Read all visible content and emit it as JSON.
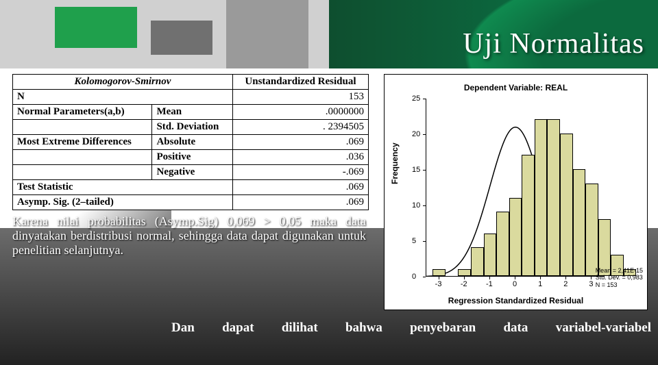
{
  "title": "Uji Normalitas",
  "table": {
    "header_left": "Kolomogorov-Smirnov",
    "header_right": "Unstandardized Residual",
    "rows": [
      {
        "a": "N",
        "b": "",
        "c": "153"
      },
      {
        "a": "Normal Parameters(a,b)",
        "b": "Mean",
        "c": ".0000000"
      },
      {
        "a": "",
        "b": "Std. Deviation",
        "c": ". 2394505"
      },
      {
        "a": "Most Extreme Differences",
        "b": "Absolute",
        "c": ".069"
      },
      {
        "a": "",
        "b": "Positive",
        "c": ".036"
      },
      {
        "a": "",
        "b": "Negative",
        "c": "-.069"
      },
      {
        "a": "Test Statistic",
        "b": "",
        "c": ".069"
      },
      {
        "a": "Asymp. Sig. (2–tailed)",
        "b": "",
        "c": ".069"
      }
    ]
  },
  "note": "Karena nilai probabilitas (Asymp.Sig) 0,069 > 0,05 maka data dinyatakan berdistribusi normal, sehingga data dapat digunakan untuk penelitian selanjutnya.",
  "footer": "Dan   dapat   dilihat   bahwa   penyebaran   data   variabel-variabel",
  "chart": {
    "type": "histogram",
    "title": "Dependent Variable: REAL",
    "xlabel": "Regression Standardized Residual",
    "ylabel": "Frequency",
    "xlim": [
      -3.5,
      3.5
    ],
    "ylim": [
      0,
      25
    ],
    "ytick_step": 5,
    "xticks": [
      -3,
      -2,
      -1,
      0,
      1,
      2,
      3
    ],
    "bin_edges_start": -3.25,
    "bin_width": 0.5,
    "freqs": [
      1,
      0,
      1,
      4,
      6,
      9,
      11,
      17,
      22,
      22,
      20,
      15,
      13,
      8,
      3,
      1
    ],
    "bar_color": "#dada9e",
    "bar_border": "#000000",
    "curve_color": "#000000",
    "background": "#ffffff",
    "stats": {
      "mean": "Mean = 2,41E-15",
      "sd": "Std. Dev. = 0,983",
      "n": "N = 153"
    },
    "title_fontsize": 12,
    "label_fontsize": 12,
    "tick_fontsize": 11
  }
}
